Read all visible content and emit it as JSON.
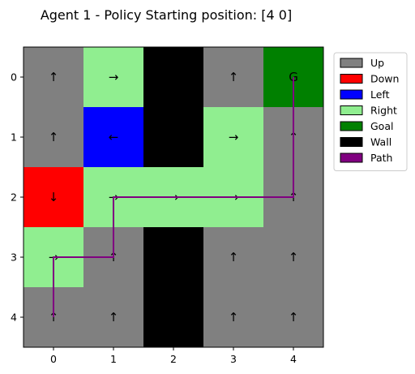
{
  "chart_data": {
    "type": "heatmap",
    "title": "Agent 1 - Policy   Starting position: [4 0]",
    "x_ticks": [
      "0",
      "1",
      "2",
      "3",
      "4"
    ],
    "y_ticks": [
      "0",
      "1",
      "2",
      "3",
      "4"
    ],
    "grid": [
      [
        "Up",
        "Right",
        "Wall",
        "Up",
        "Goal"
      ],
      [
        "Up",
        "Left",
        "Wall",
        "Right",
        "Up"
      ],
      [
        "Down",
        "Right",
        "Right",
        "Right",
        "Up"
      ],
      [
        "Right",
        "Up",
        "Wall",
        "Up",
        "Up"
      ],
      [
        "Up",
        "Up",
        "Wall",
        "Up",
        "Up"
      ]
    ],
    "policy_glyphs": [
      [
        "↑",
        "→",
        "",
        "↑",
        "G"
      ],
      [
        "↑",
        "←",
        "",
        "→",
        "↑"
      ],
      [
        "↓",
        "→",
        "→",
        "→",
        "↑"
      ],
      [
        "→",
        "↑",
        "",
        "↑",
        "↑"
      ],
      [
        "↑",
        "↑",
        "",
        "↑",
        "↑"
      ]
    ],
    "path": [
      [
        4,
        0
      ],
      [
        3,
        0
      ],
      [
        3,
        1
      ],
      [
        2,
        1
      ],
      [
        2,
        2
      ],
      [
        2,
        3
      ],
      [
        2,
        4
      ],
      [
        1,
        4
      ],
      [
        0,
        4
      ]
    ],
    "legend_position": "upper-right-outside",
    "legend": [
      {
        "label": "Up",
        "color": "#808080"
      },
      {
        "label": "Down",
        "color": "#ff0000"
      },
      {
        "label": "Left",
        "color": "#0000ff"
      },
      {
        "label": "Right",
        "color": "#90ee90"
      },
      {
        "label": "Goal",
        "color": "#008000"
      },
      {
        "label": "Wall",
        "color": "#000000"
      },
      {
        "label": "Path",
        "color": "#800080"
      }
    ],
    "path_color": "#800080"
  }
}
